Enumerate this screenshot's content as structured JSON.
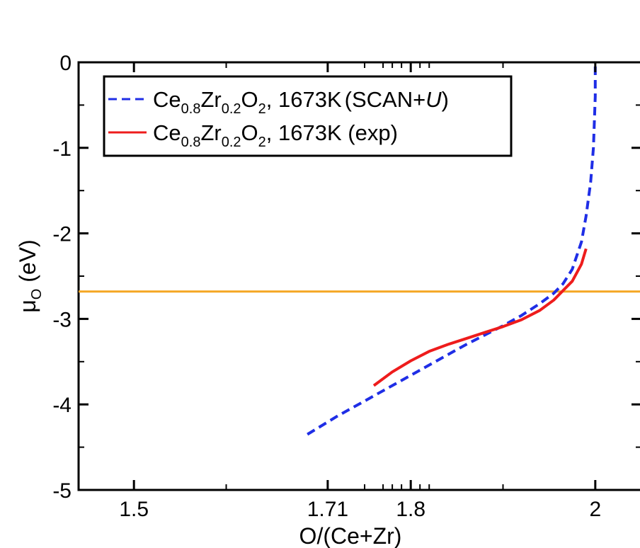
{
  "chart_data": {
    "type": "line",
    "title": "",
    "xlabel": "O/(Ce+Zr)",
    "ylabel": {
      "main": "μ",
      "sub": "O",
      "rest": " (eV)"
    },
    "xlim": [
      1.44,
      2.05
    ],
    "ylim": [
      -5,
      0
    ],
    "x_ticks": [
      {
        "value": 1.5,
        "label": "1.5"
      },
      {
        "value": 1.71,
        "label": "1.71"
      },
      {
        "value": 1.8,
        "label": "1.8"
      },
      {
        "value": 2.0,
        "label": "2"
      }
    ],
    "x_minor_ticks": [
      1.6,
      1.75,
      1.77,
      1.78,
      1.79,
      1.81,
      1.82,
      1.9
    ],
    "y_ticks": [
      {
        "value": 0,
        "label": "0"
      },
      {
        "value": -1,
        "label": "-1"
      },
      {
        "value": -2,
        "label": "-2"
      },
      {
        "value": -3,
        "label": "-3"
      },
      {
        "value": -4,
        "label": "-4"
      },
      {
        "value": -5,
        "label": "-5"
      }
    ],
    "y_minor_ticks": [
      -0.5,
      -1.5,
      -2.5,
      -3.5,
      -4.5
    ],
    "grid": false,
    "legend_position": "top-left",
    "reference_line": {
      "y": -2.68,
      "color": "#f5a623"
    },
    "series": [
      {
        "color": "#1f2ee6",
        "style": "dashed",
        "legend": {
          "base": "Ce",
          "s1": "0.8",
          "mid": "Zr",
          "s2": "0.2",
          "end": "O",
          "s3": "2",
          "tail": ", 1673K",
          "tail2": "(SCAN+",
          "italic": "U",
          "tail3": ")"
        },
        "points": [
          [
            1.688,
            -4.35
          ],
          [
            1.72,
            -4.14
          ],
          [
            1.75,
            -3.96
          ],
          [
            1.78,
            -3.78
          ],
          [
            1.82,
            -3.54
          ],
          [
            1.86,
            -3.3
          ],
          [
            1.9,
            -3.08
          ],
          [
            1.92,
            -2.96
          ],
          [
            1.94,
            -2.82
          ],
          [
            1.955,
            -2.7
          ],
          [
            1.965,
            -2.59
          ],
          [
            1.975,
            -2.42
          ],
          [
            1.985,
            -2.1
          ],
          [
            1.99,
            -1.8
          ],
          [
            1.995,
            -1.4
          ],
          [
            1.998,
            -1.0
          ],
          [
            1.999,
            -0.7
          ],
          [
            2.0,
            -0.4
          ],
          [
            2.0,
            0.0
          ]
        ]
      },
      {
        "color": "#ee1c1c",
        "style": "solid",
        "legend": {
          "base": "Ce",
          "s1": "0.8",
          "mid": "Zr",
          "s2": "0.2",
          "end": "O",
          "s3": "2",
          "tail": ", 1673K (exp)"
        },
        "points": [
          [
            1.76,
            -3.78
          ],
          [
            1.78,
            -3.62
          ],
          [
            1.8,
            -3.49
          ],
          [
            1.82,
            -3.38
          ],
          [
            1.84,
            -3.3
          ],
          [
            1.86,
            -3.23
          ],
          [
            1.88,
            -3.16
          ],
          [
            1.9,
            -3.09
          ],
          [
            1.92,
            -3.01
          ],
          [
            1.94,
            -2.9
          ],
          [
            1.955,
            -2.78
          ],
          [
            1.965,
            -2.67
          ],
          [
            1.975,
            -2.56
          ],
          [
            1.985,
            -2.36
          ],
          [
            1.99,
            -2.18
          ]
        ]
      }
    ]
  }
}
